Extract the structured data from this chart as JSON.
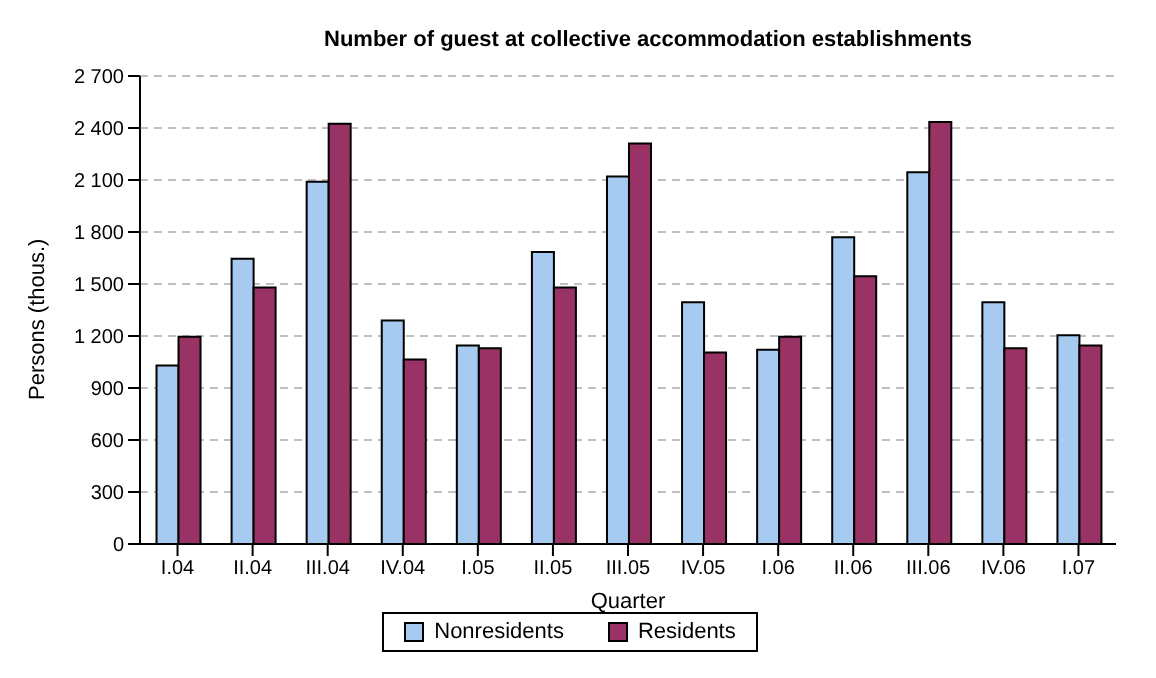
{
  "chart_data": {
    "type": "bar",
    "title": "Number of guest at collective accommodation establishments",
    "xlabel": "Quarter",
    "ylabel": "Persons (thous.)",
    "categories": [
      "I.04",
      "II.04",
      "III.04",
      "IV.04",
      "I.05",
      "II.05",
      "III.05",
      "IV.05",
      "I.06",
      "II.06",
      "III.06",
      "IV.06",
      "I.07"
    ],
    "series": [
      {
        "name": "Nonresidents",
        "color": "#a6caf0",
        "values": [
          1030,
          1645,
          2090,
          1290,
          1145,
          1685,
          2120,
          1395,
          1120,
          1770,
          2145,
          1395,
          1205
        ]
      },
      {
        "name": "Residents",
        "color": "#993366",
        "values": [
          1195,
          1480,
          2425,
          1065,
          1130,
          1480,
          2310,
          1105,
          1195,
          1545,
          2435,
          1130,
          1145
        ]
      }
    ],
    "ylim": [
      0,
      2700
    ],
    "yticks": [
      0,
      300,
      600,
      900,
      {
        "value": 1200,
        "label": "1 200"
      },
      {
        "value": 1500,
        "label": "1 500"
      },
      {
        "value": 1800,
        "label": "1 800"
      },
      {
        "value": 2100,
        "label": "2 100"
      },
      {
        "value": 2400,
        "label": "2 400"
      },
      {
        "value": 2700,
        "label": "2 700"
      }
    ],
    "grid": "y",
    "legend": "bottom"
  }
}
